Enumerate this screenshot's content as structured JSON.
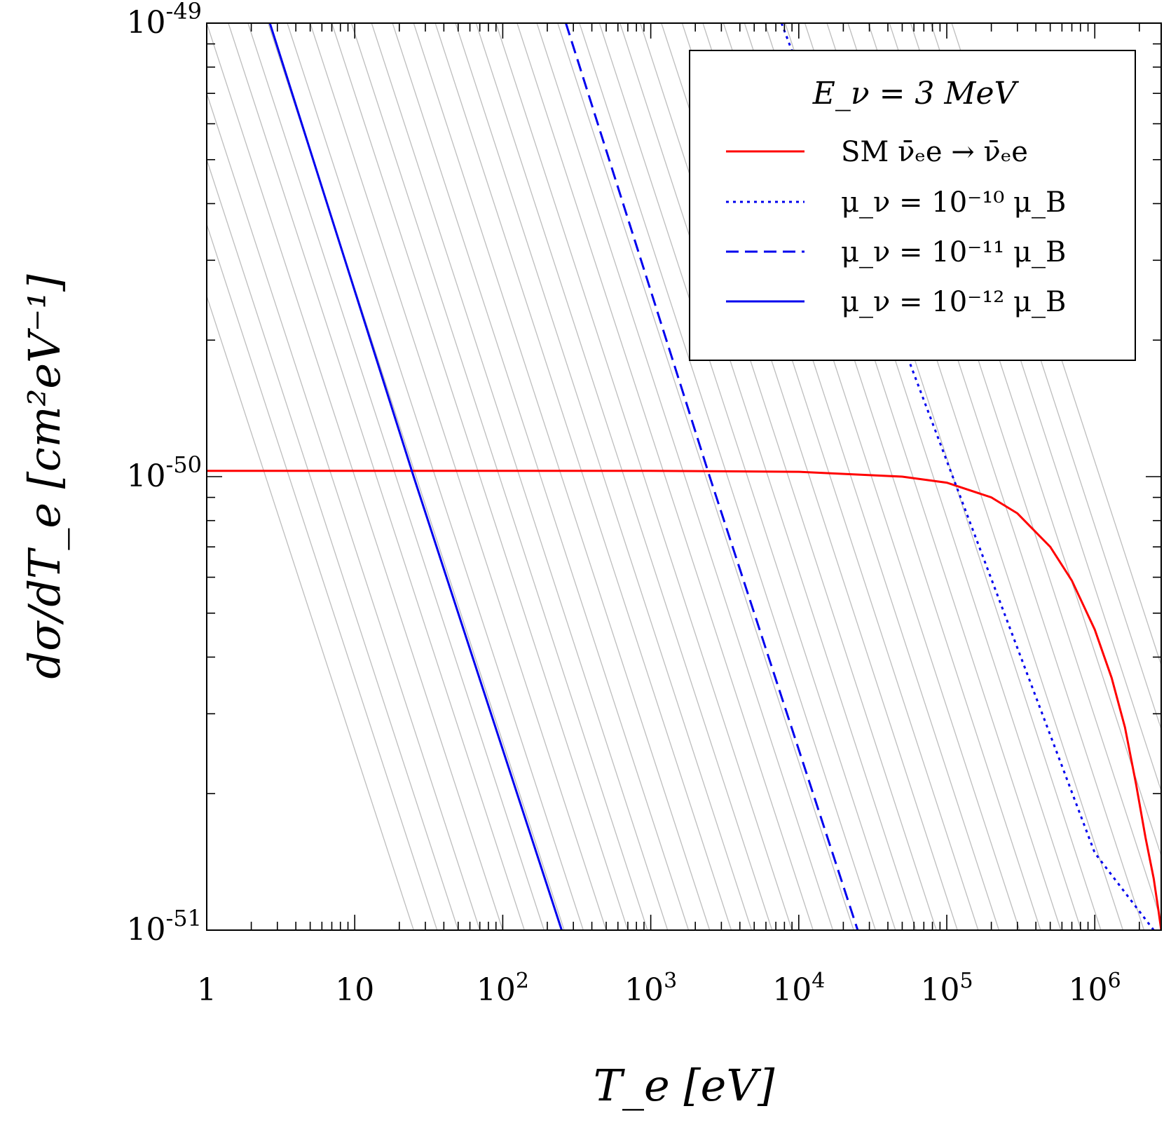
{
  "chart_data": {
    "type": "line",
    "xlabel": "T_e   [eV]",
    "ylabel": "dσ/dT_e   [cm²eV⁻¹]",
    "x_scale": "log",
    "y_scale": "log",
    "xlim": [
      1,
      2810000
    ],
    "ylim": [
      1e-51,
      1e-49
    ],
    "x_ticks": [
      {
        "value": 1,
        "base": "1",
        "exp": ""
      },
      {
        "value": 10,
        "base": "10",
        "exp": ""
      },
      {
        "value": 100,
        "base": "10",
        "exp": "2"
      },
      {
        "value": 1000,
        "base": "10",
        "exp": "3"
      },
      {
        "value": 10000,
        "base": "10",
        "exp": "4"
      },
      {
        "value": 100000,
        "base": "10",
        "exp": "5"
      },
      {
        "value": 1000000,
        "base": "10",
        "exp": "6"
      }
    ],
    "y_ticks": [
      {
        "value": 1e-51,
        "base": "10",
        "exp": "-51"
      },
      {
        "value": 1e-50,
        "base": "10",
        "exp": "-50"
      },
      {
        "value": 1e-49,
        "base": "10",
        "exp": "-49"
      }
    ],
    "legend": {
      "placement": "top-right",
      "title": "E_ν = 3 MeV",
      "entries": [
        {
          "label": "SM ν̄ₑe → ν̄ₑe",
          "color": "#ff0000",
          "dash": "solid"
        },
        {
          "label": "μ_ν = 10⁻¹⁰ μ_B",
          "color": "#0000ee",
          "dash": "dotted"
        },
        {
          "label": "μ_ν = 10⁻¹¹ μ_B",
          "color": "#0000ee",
          "dash": "dashed"
        },
        {
          "label": "μ_ν = 10⁻¹² μ_B",
          "color": "#0000ee",
          "dash": "solid"
        }
      ]
    },
    "series": [
      {
        "color": "#ff0000",
        "dash": "solid",
        "x": [
          1,
          10,
          100,
          1000,
          10000,
          50000,
          100000,
          200000,
          300000,
          500000,
          700000,
          1000000,
          1300000,
          1600000,
          1900000,
          2200000,
          2500000,
          2700000,
          2810000
        ],
        "y": [
          1.03e-50,
          1.03e-50,
          1.03e-50,
          1.03e-50,
          1.025e-50,
          1e-50,
          9.7e-51,
          9e-51,
          8.3e-51,
          7e-51,
          5.9e-51,
          4.6e-51,
          3.6e-51,
          2.8e-51,
          2.1e-51,
          1.6e-51,
          1.3e-51,
          1.1e-51,
          1e-51
        ]
      },
      {
        "color": "#0000ee",
        "dash": "dotted",
        "x": [
          7650,
          1000000,
          2500000
        ],
        "y": [
          1e-49,
          1.48e-51,
          1e-51
        ]
      },
      {
        "color": "#0000ee",
        "dash": "dashed",
        "x": [
          267,
          2500,
          25000
        ],
        "y": [
          1e-49,
          1e-50,
          1e-51
        ]
      },
      {
        "color": "#0000ee",
        "dash": "solid",
        "x": [
          2.67,
          25,
          250
        ],
        "y": [
          1e-49,
          1e-50,
          1e-51
        ]
      }
    ],
    "background_lines": {
      "color": "#bdbdbd",
      "slope_decades_y_per_decade_x": -1,
      "anchors_x_at_ymax": [
        0.25,
        0.36,
        0.5,
        0.7,
        1,
        1.4,
        1.9,
        2.6,
        3.5,
        5,
        7,
        9.5,
        13,
        18,
        25,
        35,
        48,
        66,
        90,
        125,
        170,
        235,
        330,
        450,
        620,
        850,
        1180,
        1630,
        2250,
        3100,
        4300,
        5900,
        8100,
        11000,
        15500,
        21500,
        29500,
        41000,
        57000,
        78000,
        108000
      ]
    }
  }
}
